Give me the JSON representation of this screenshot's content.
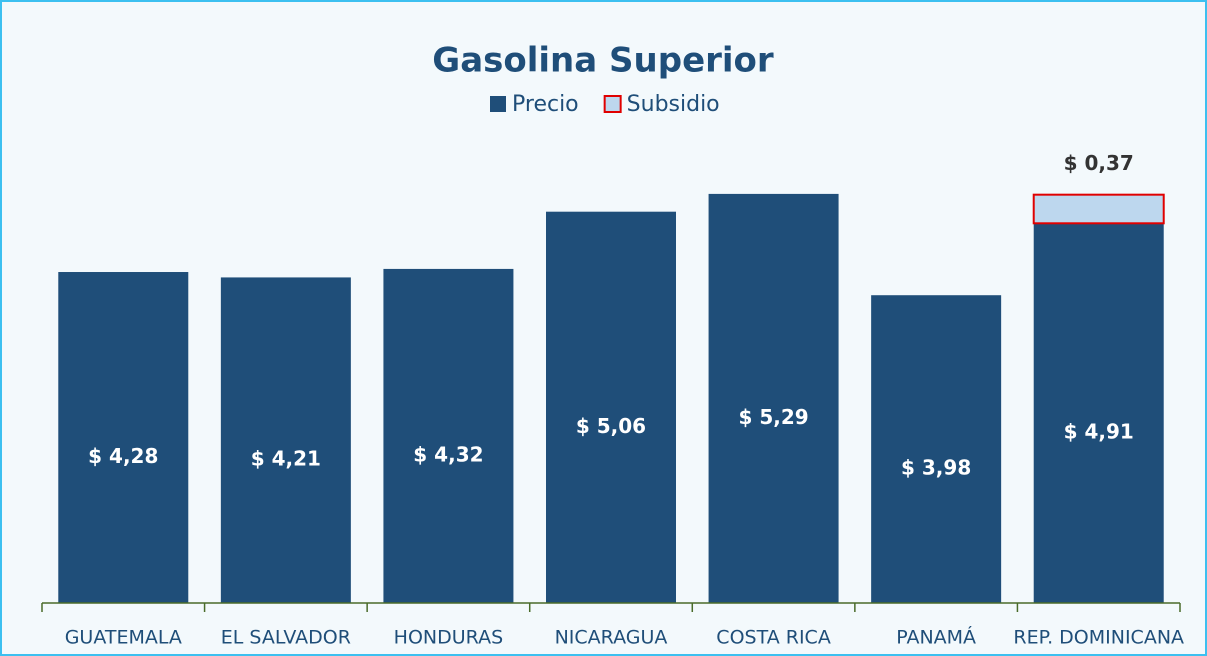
{
  "chart_data": {
    "type": "stacked_bar",
    "title": "Gasolina Superior",
    "categories": [
      "GUATEMALA",
      "EL SALVADOR",
      "HONDURAS",
      "NICARAGUA",
      "COSTA RICA",
      "PANAMÁ",
      "REP. DOMINICANA"
    ],
    "series": [
      {
        "name": "Precio",
        "color": "#1f4e79",
        "values": [
          4.28,
          4.21,
          4.32,
          5.06,
          5.29,
          3.98,
          4.91
        ],
        "value_labels": [
          "$ 4,28",
          "$ 4,21",
          "$ 4,32",
          "$ 5,06",
          "$ 5,29",
          "$ 3,98",
          "$ 4,91"
        ]
      },
      {
        "name": "Subsidio",
        "color": "#bdd7ee",
        "edge_color": "#e00000",
        "values": [
          null,
          null,
          null,
          null,
          null,
          null,
          0.37
        ],
        "value_labels": [
          null,
          null,
          null,
          null,
          null,
          null,
          "$ 0,37"
        ]
      }
    ],
    "ylim": [
      0,
      6
    ]
  }
}
